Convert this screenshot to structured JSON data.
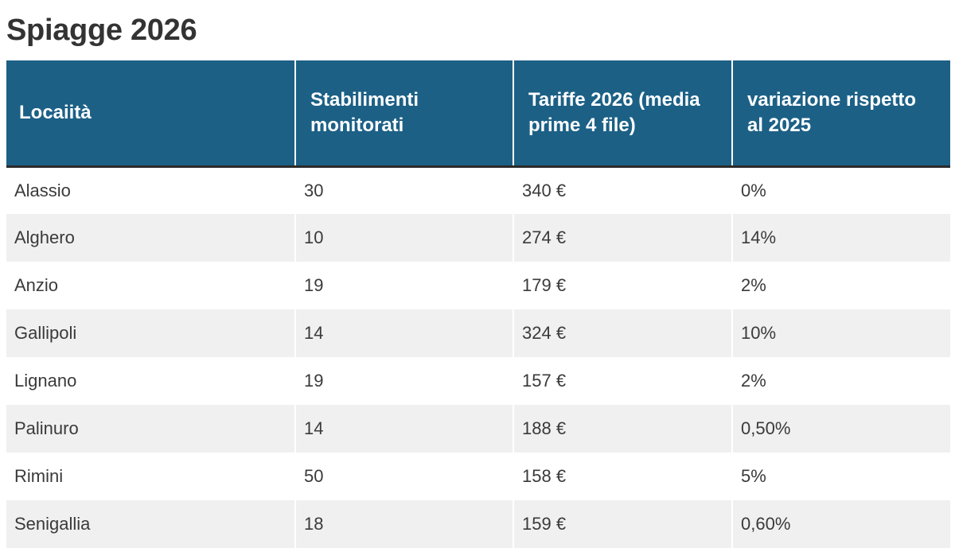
{
  "title": "Spiagge 2026",
  "table": {
    "headers": [
      "Locaiità",
      "Stabilimenti monitorati",
      "Tariffe 2026 (media prime 4 file)",
      "variazione rispetto al 2025"
    ],
    "rows": [
      [
        "Alassio",
        "30",
        "340 €",
        "0%"
      ],
      [
        "Alghero",
        "10",
        "274 €",
        "14%"
      ],
      [
        "Anzio",
        "19",
        "179 €",
        "2%"
      ],
      [
        "Gallipoli",
        "14",
        "324 €",
        "10%"
      ],
      [
        "Lignano",
        "19",
        "157 €",
        "2%"
      ],
      [
        "Palinuro",
        "14",
        "188 €",
        "0,50%"
      ],
      [
        "Rimini",
        "50",
        "158 €",
        "5%"
      ],
      [
        "Senigallia",
        "18",
        "159 €",
        "0,60%"
      ]
    ]
  },
  "colors": {
    "header_bg": "#1c6086",
    "header_text": "#ffffff",
    "stripe": "#f0f0f0",
    "text": "#333333"
  }
}
